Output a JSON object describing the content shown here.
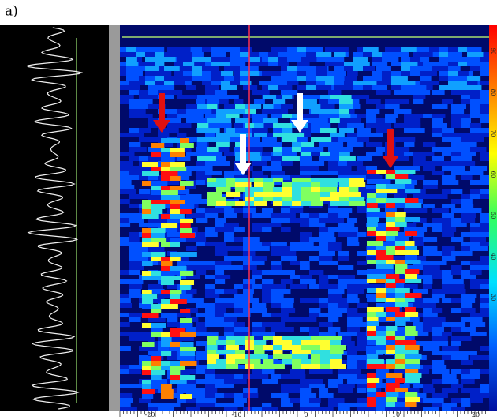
{
  "panel_label": "a)",
  "x_axis": {
    "tick_labels": [
      "-20",
      "-10",
      "0",
      "10",
      "20"
    ]
  },
  "colorbar": {
    "tick_labels": [
      "90",
      "80",
      "70",
      "60",
      "50",
      "40",
      "30"
    ]
  }
}
